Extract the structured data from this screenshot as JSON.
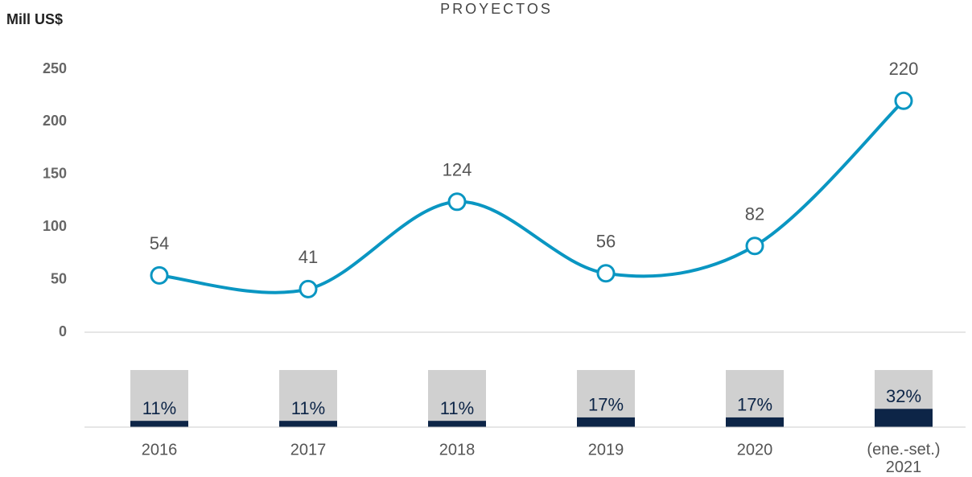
{
  "chart_data": [
    {
      "type": "line",
      "title": "PROYECTOS",
      "y_label": "Mill US$",
      "categories": [
        "2016",
        "2017",
        "2018",
        "2019",
        "2020",
        "(ene.-set.) 2021"
      ],
      "values": [
        54,
        41,
        124,
        56,
        82,
        220
      ],
      "color": "#0a96c2",
      "ylim": [
        0,
        250
      ],
      "yticks": [
        0,
        50,
        100,
        150,
        200,
        250
      ]
    },
    {
      "type": "bar",
      "values": [
        11,
        11,
        11,
        17,
        17,
        32
      ],
      "value_labels": [
        "11%",
        "11%",
        "11%",
        "17%",
        "17%",
        "32%"
      ],
      "ylim": [
        0,
        100
      ],
      "color": "#0d2547",
      "background_color": "#d0d0d0"
    }
  ]
}
